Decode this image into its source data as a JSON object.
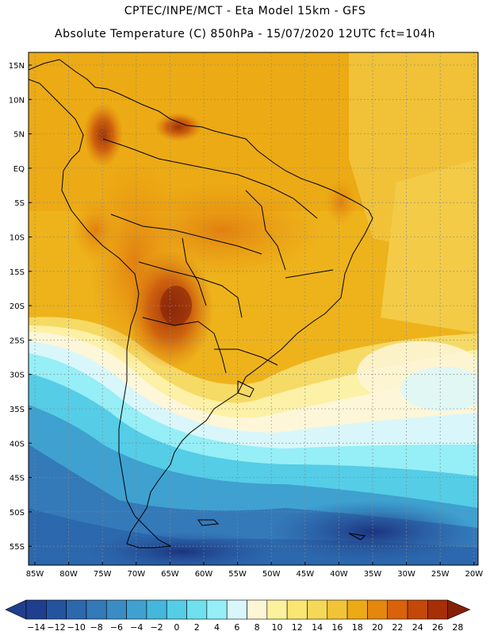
{
  "header": {
    "line1": "CPTEC/INPE/MCT -  Eta Model 15km - GFS",
    "line2": "Absolute Temperature (C) 850hPa - 15/07/2020 12UTC fct=104h"
  },
  "map": {
    "lat_labels": [
      "15N",
      "10N",
      "5N",
      "EQ",
      "5S",
      "10S",
      "15S",
      "20S",
      "25S",
      "30S",
      "35S",
      "40S",
      "45S",
      "50S",
      "55S"
    ],
    "lon_labels": [
      "85W",
      "80W",
      "75W",
      "70W",
      "65W",
      "60W",
      "55W",
      "50W",
      "45W",
      "40W",
      "35W",
      "30W",
      "25W",
      "20W"
    ],
    "colorbar": {
      "tick_labels": [
        "-14",
        "-12",
        "-10",
        "-8",
        "-6",
        "-4",
        "-2",
        "0",
        "2",
        "4",
        "6",
        "8",
        "10",
        "12",
        "14",
        "16",
        "18",
        "20",
        "22",
        "24",
        "26",
        "28"
      ],
      "colors": [
        "#1f3f8e",
        "#24549f",
        "#2c68ad",
        "#3479b8",
        "#3b8cc4",
        "#3fa1d0",
        "#45b6dc",
        "#55cde6",
        "#6ee0ee",
        "#96eef6",
        "#d9f7fb",
        "#fdf6d5",
        "#fcf19c",
        "#f9e673",
        "#f5d857",
        "#f1c437",
        "#ecaa14",
        "#e5860d",
        "#d9620a",
        "#c44808",
        "#a62f06",
        "#842008"
      ]
    }
  }
}
